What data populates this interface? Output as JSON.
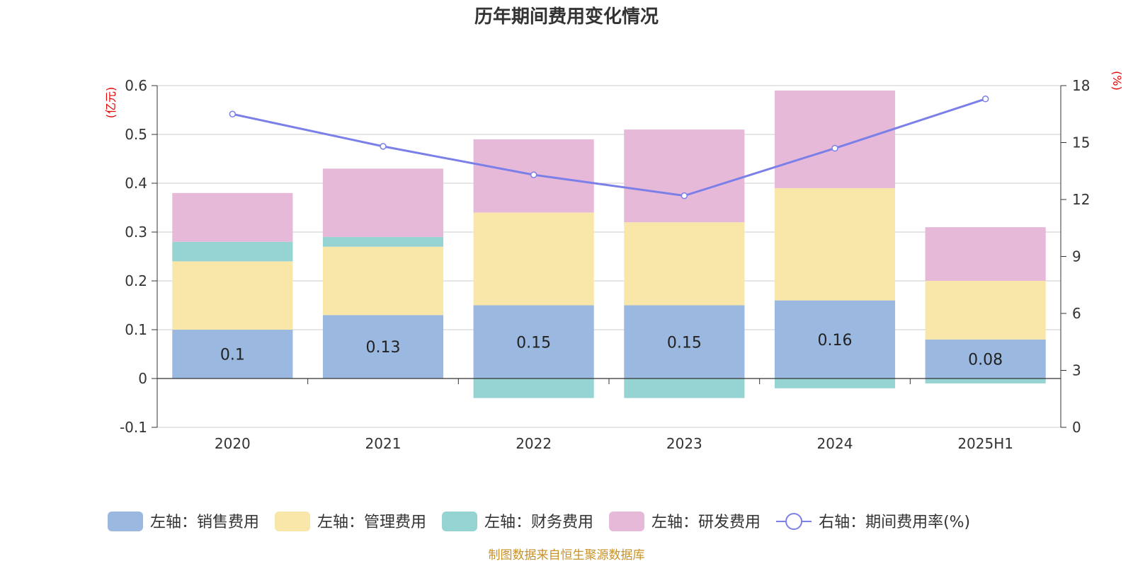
{
  "chart_data": {
    "type": "bar",
    "title": "历年期间费用变化情况",
    "categories": [
      "2020",
      "2021",
      "2022",
      "2023",
      "2024",
      "2025H1"
    ],
    "left_axis": {
      "unit": "(亿元)",
      "ylim": [
        -0.1,
        0.6
      ],
      "ticks": [
        "-0.1",
        "0",
        "0.1",
        "0.2",
        "0.3",
        "0.4",
        "0.5",
        "0.6"
      ],
      "tick_values": [
        -0.1,
        0,
        0.1,
        0.2,
        0.3,
        0.4,
        0.5,
        0.6
      ]
    },
    "right_axis": {
      "unit": "(%)",
      "ylim": [
        0,
        18
      ],
      "ticks": [
        "0",
        "3",
        "6",
        "9",
        "12",
        "15",
        "18"
      ],
      "tick_values": [
        0,
        3,
        6,
        9,
        12,
        15,
        18
      ]
    },
    "series": [
      {
        "name": "左轴：销售费用",
        "type": "bar",
        "axis": "left",
        "color": "#9bb8e0",
        "values": [
          0.1,
          0.13,
          0.15,
          0.15,
          0.16,
          0.08
        ],
        "labels": [
          "0.1",
          "0.13",
          "0.15",
          "0.15",
          "0.16",
          "0.08"
        ]
      },
      {
        "name": "左轴：管理费用",
        "type": "bar",
        "axis": "left",
        "color": "#f8e7a9",
        "values": [
          0.14,
          0.14,
          0.19,
          0.17,
          0.23,
          0.12
        ]
      },
      {
        "name": "左轴：财务费用",
        "type": "bar",
        "axis": "left",
        "color": "#96d4d4",
        "values": [
          0.04,
          0.02,
          -0.04,
          -0.04,
          -0.02,
          -0.01
        ]
      },
      {
        "name": "左轴：研发费用",
        "type": "bar",
        "axis": "left",
        "color": "#e7b9d9",
        "values": [
          0.1,
          0.14,
          0.15,
          0.19,
          0.2,
          0.11
        ]
      },
      {
        "name": "右轴：期间费用率(%)",
        "type": "line",
        "axis": "right",
        "color": "#7b7fe8",
        "values": [
          16.5,
          14.8,
          13.3,
          12.2,
          14.7,
          17.3
        ]
      }
    ],
    "grid": true,
    "legend_position": "bottom"
  },
  "footer": {
    "source": "制图数据来自恒生聚源数据库"
  }
}
